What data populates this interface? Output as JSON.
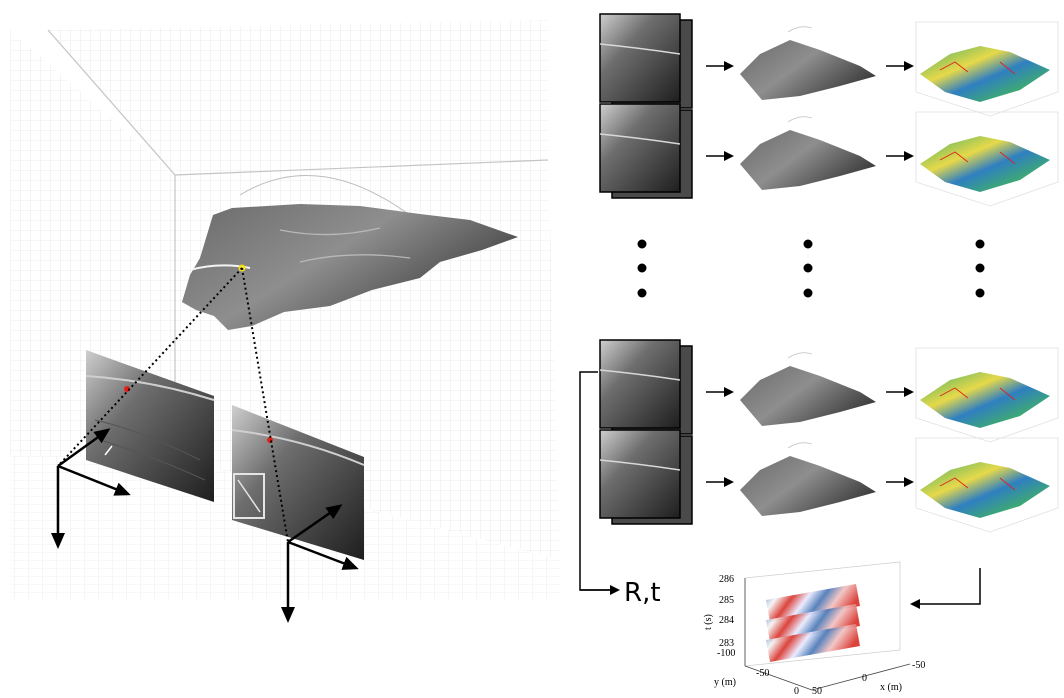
{
  "flow_label": "R,t",
  "plot": {
    "t_axis_label": "t (s)",
    "y_axis_label": "y (m)",
    "x_axis_label": "x (m)",
    "t_ticks": [
      "286",
      "285",
      "284",
      "283"
    ],
    "y_ticks": [
      "-100",
      "-50",
      "0"
    ],
    "x_ticks": [
      "-50",
      "0",
      "50"
    ]
  },
  "colors": {
    "grid_line": "#d4d4d4",
    "arrow": "#000000",
    "dotted_line": "#000000",
    "image_gray_dark": "#2a2a2a",
    "image_gray_light": "#9a9a9a",
    "surface_blue": "#2f7fc1",
    "surface_green": "#3fae6a",
    "surface_yellow": "#e6d94a",
    "point_yellow": "#f2e21a",
    "point_red": "#e0201a",
    "heat_red": "#d73027",
    "heat_blue": "#4575b4"
  },
  "pipeline_rows": 4,
  "ellipsis_columns": 3
}
